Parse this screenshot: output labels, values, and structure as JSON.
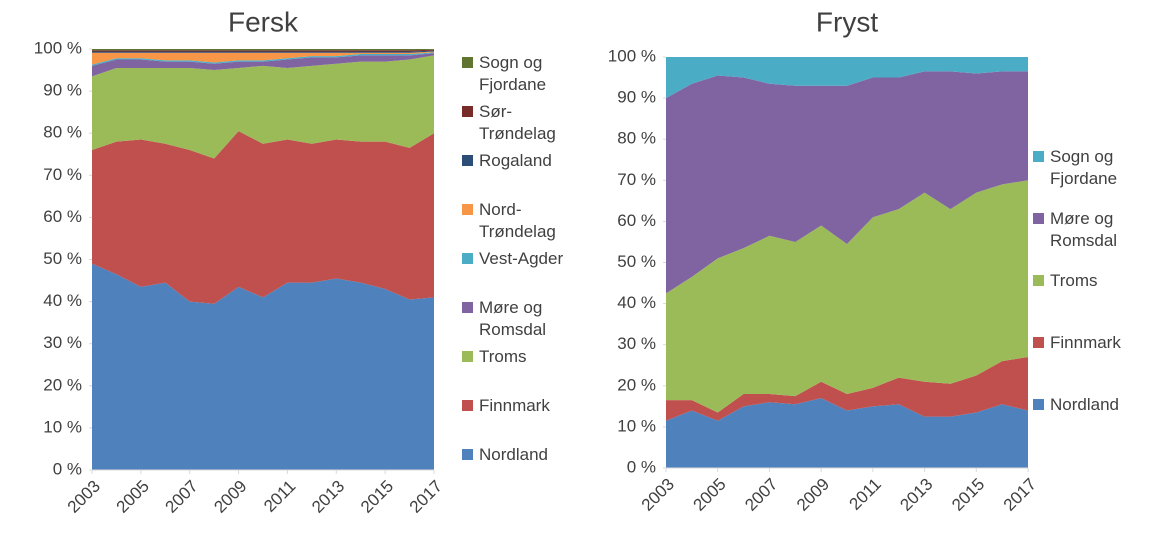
{
  "chart_data": [
    {
      "type": "area",
      "stacked": true,
      "title": "Fersk",
      "x": [
        2003,
        2004,
        2005,
        2006,
        2007,
        2008,
        2009,
        2010,
        2011,
        2012,
        2013,
        2014,
        2015,
        2016,
        2017
      ],
      "xlim": [
        2003,
        2017
      ],
      "xticks": [
        2003,
        2005,
        2007,
        2009,
        2011,
        2013,
        2015,
        2017
      ],
      "ylim": [
        0,
        100
      ],
      "yticks": [
        {
          "value": 0,
          "label": "0 %"
        },
        {
          "value": 10,
          "label": "10 %"
        },
        {
          "value": 20,
          "label": "20 %"
        },
        {
          "value": 30,
          "label": "30 %"
        },
        {
          "value": 40,
          "label": "40 %"
        },
        {
          "value": 50,
          "label": "50 %"
        },
        {
          "value": 60,
          "label": "60 %"
        },
        {
          "value": 70,
          "label": "70 %"
        },
        {
          "value": 80,
          "label": "80 %"
        },
        {
          "value": 90,
          "label": "90 %"
        },
        {
          "value": 100,
          "label": "100 %"
        }
      ],
      "series": [
        {
          "name": "Nordland",
          "color": "#4f81bd",
          "values": [
            49,
            46.5,
            43.5,
            44.5,
            40,
            39.5,
            43.5,
            41,
            44.5,
            44.5,
            45.5,
            44.5,
            43,
            40.5,
            41
          ]
        },
        {
          "name": "Finnmark",
          "color": "#c0504d",
          "values": [
            27,
            31.5,
            35,
            33,
            36,
            34.5,
            37,
            36.5,
            34,
            33,
            33,
            33.5,
            35,
            36,
            39
          ]
        },
        {
          "name": "Troms",
          "color": "#9bbb59",
          "values": [
            17.5,
            17.5,
            17,
            18,
            19.5,
            21,
            15,
            18.5,
            17,
            18.5,
            18,
            19,
            19,
            21,
            18.5
          ]
        },
        {
          "name": "Møre og Romsdal",
          "color": "#8064a2",
          "values": [
            2.5,
            2,
            2,
            1.5,
            1.5,
            1.5,
            1.5,
            1,
            2,
            2,
            1.5,
            1.5,
            1.5,
            1,
            0.5
          ]
        },
        {
          "name": "Vest-Agder",
          "color": "#4bacc6",
          "values": [
            0.3,
            0.3,
            0.3,
            0.3,
            0.3,
            0.3,
            0.3,
            0.3,
            0.3,
            0.3,
            0.3,
            0.3,
            0.3,
            0.3,
            0.2
          ]
        },
        {
          "name": "Nord-Trøndelag",
          "color": "#f79646",
          "values": [
            2.8,
            1.3,
            1.3,
            1.8,
            1.8,
            2.3,
            1.8,
            1.8,
            1.3,
            0.8,
            0.8,
            0.3,
            0.3,
            0.3,
            0.2
          ]
        },
        {
          "name": "Rogaland",
          "color": "#2c4d75",
          "values": [
            0.3,
            0.3,
            0.3,
            0.3,
            0.3,
            0.3,
            0.3,
            0.3,
            0.3,
            0.3,
            0.3,
            0.3,
            0.3,
            0.3,
            0.2
          ]
        },
        {
          "name": "Sør-Trøndelag",
          "color": "#772c2a",
          "values": [
            0.3,
            0.3,
            0.3,
            0.3,
            0.3,
            0.3,
            0.3,
            0.3,
            0.3,
            0.3,
            0.3,
            0.3,
            0.3,
            0.3,
            0.2
          ]
        },
        {
          "name": "Sogn og Fjordane",
          "color": "#5f7530",
          "values": [
            0.3,
            0.3,
            0.3,
            0.3,
            0.3,
            0.3,
            0.3,
            0.3,
            0.3,
            0.3,
            0.3,
            0.3,
            0.3,
            0.3,
            0.2
          ]
        }
      ]
    },
    {
      "type": "area",
      "stacked": true,
      "title": "Fryst",
      "x": [
        2003,
        2004,
        2005,
        2006,
        2007,
        2008,
        2009,
        2010,
        2011,
        2012,
        2013,
        2014,
        2015,
        2016,
        2017
      ],
      "xlim": [
        2003,
        2017
      ],
      "xticks": [
        2003,
        2005,
        2007,
        2009,
        2011,
        2013,
        2015,
        2017
      ],
      "ylim": [
        0,
        100
      ],
      "yticks": [
        {
          "value": 0,
          "label": "0 %"
        },
        {
          "value": 10,
          "label": "10 %"
        },
        {
          "value": 20,
          "label": "20 %"
        },
        {
          "value": 30,
          "label": "30 %"
        },
        {
          "value": 40,
          "label": "40 %"
        },
        {
          "value": 50,
          "label": "50 %"
        },
        {
          "value": 60,
          "label": "60 %"
        },
        {
          "value": 70,
          "label": "70 %"
        },
        {
          "value": 80,
          "label": "80 %"
        },
        {
          "value": 90,
          "label": "90 %"
        },
        {
          "value": 100,
          "label": "100 %"
        }
      ],
      "series": [
        {
          "name": "Nordland",
          "color": "#4f81bd",
          "values": [
            11.5,
            14,
            11.5,
            15,
            16,
            15.5,
            17,
            14,
            15,
            15.5,
            12.5,
            12.5,
            13.5,
            15.5,
            14
          ]
        },
        {
          "name": "Finnmark",
          "color": "#c0504d",
          "values": [
            5,
            2.5,
            2,
            3,
            2,
            2,
            4,
            4,
            4.5,
            6.5,
            8.5,
            8,
            9,
            10.5,
            13
          ]
        },
        {
          "name": "Troms",
          "color": "#9bbb59",
          "values": [
            26,
            30,
            37.5,
            35.5,
            38.5,
            37.5,
            38,
            36.5,
            41.5,
            41,
            46,
            42.5,
            44.5,
            43,
            43
          ]
        },
        {
          "name": "Møre og Romsdal",
          "color": "#8064a2",
          "values": [
            47.5,
            47,
            44.5,
            41.5,
            37,
            38,
            34,
            38.5,
            34,
            32,
            29.5,
            33.5,
            29,
            27.5,
            26.5
          ]
        },
        {
          "name": "Sogn og Fjordane",
          "color": "#4bacc6",
          "values": [
            10,
            6.5,
            4.5,
            5,
            6.5,
            7,
            7,
            7,
            5,
            5,
            3.5,
            3.5,
            4,
            3.5,
            3.5
          ]
        }
      ]
    }
  ]
}
